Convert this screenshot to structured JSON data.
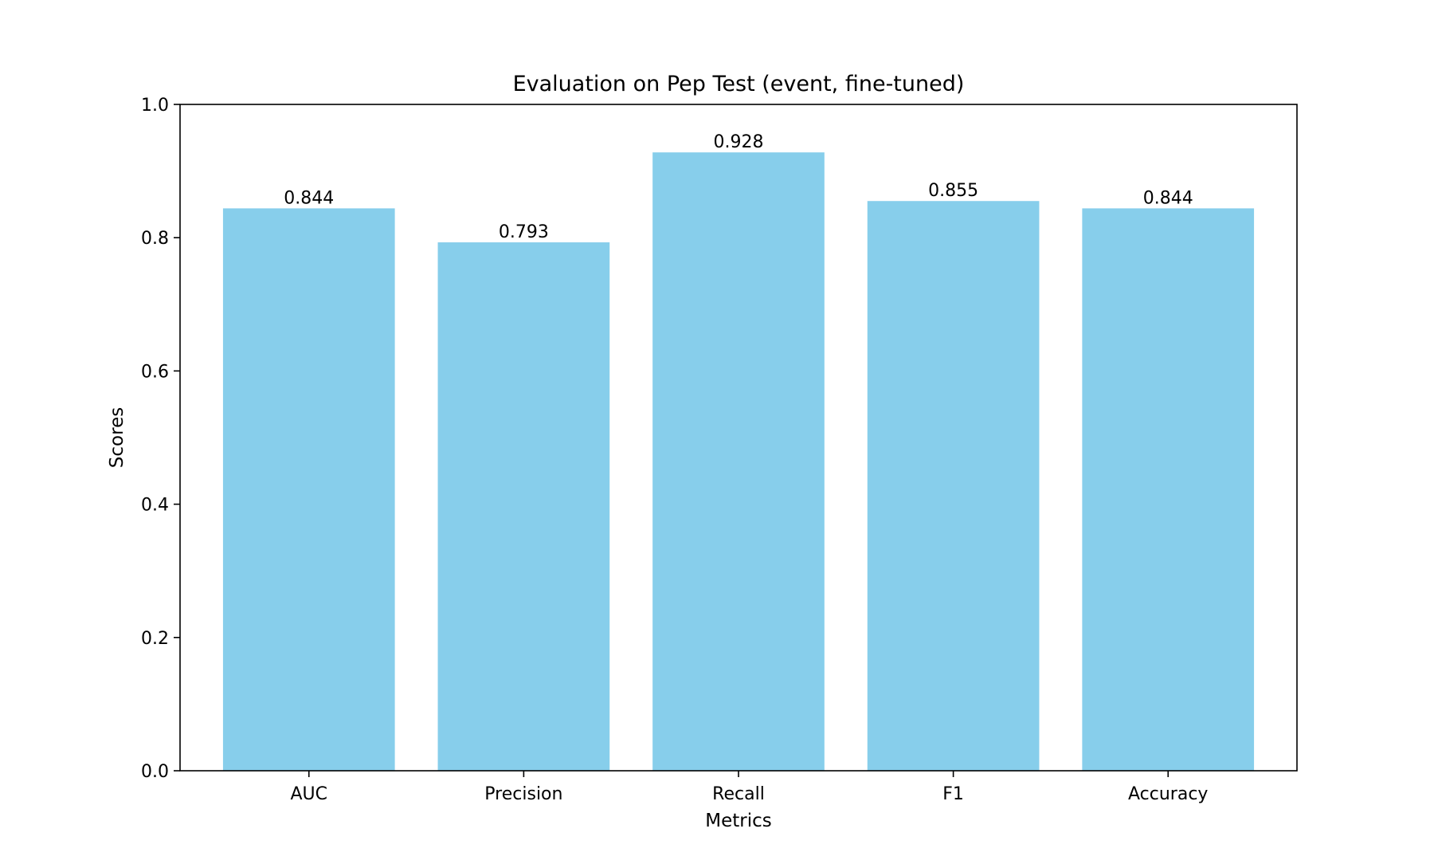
{
  "chart_data": {
    "type": "bar",
    "title": "Evaluation on Pep Test (event, fine-tuned)",
    "xlabel": "Metrics",
    "ylabel": "Scores",
    "categories": [
      "AUC",
      "Precision",
      "Recall",
      "F1",
      "Accuracy"
    ],
    "values": [
      0.844,
      0.793,
      0.928,
      0.855,
      0.844
    ],
    "value_labels": [
      "0.844",
      "0.793",
      "0.928",
      "0.855",
      "0.844"
    ],
    "ylim": [
      0,
      1.0
    ],
    "yticks": [
      "0.0",
      "0.2",
      "0.4",
      "0.6",
      "0.8",
      "1.0"
    ],
    "ytick_values": [
      0.0,
      0.2,
      0.4,
      0.6,
      0.8,
      1.0
    ],
    "bar_color": "#87CEEB",
    "grid": false,
    "legend": false
  }
}
